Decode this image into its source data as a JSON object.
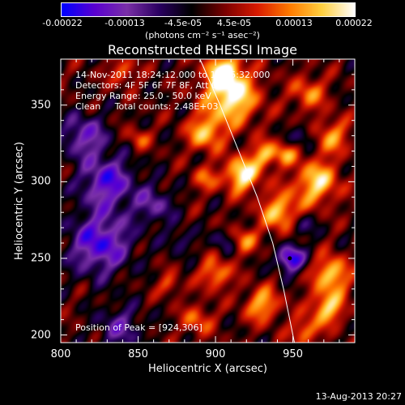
{
  "colorbar": {
    "tick_labels": [
      "-0.00022",
      "-0.00013",
      "-4.5e-05",
      "4.5e-05",
      "0.00013",
      "0.00022"
    ],
    "units": "(photons cm⁻² s⁻¹ asec⁻²)",
    "vmin": -0.00022,
    "vmax": 0.00022
  },
  "info": {
    "time_range": "14-Nov-2011 18:24:12.000 to 18:25:32.000",
    "detectors": "Detectors: 4F 5F 6F 7F 8F, Att 0",
    "energy": "Energy Range: 25.0 - 50.0 keV",
    "method": "Clean     Total counts: 2.48E+03",
    "peak": "Position of Peak = [924,306]"
  },
  "timestamp": "13-Aug-2013 20:27",
  "chart_data": {
    "type": "heatmap",
    "title": "Reconstructed RHESSI Image",
    "xlabel": "Heliocentric X (arcsec)",
    "ylabel": "Heliocentric Y (arcsec)",
    "xlim": [
      800,
      990
    ],
    "ylim": [
      195,
      380
    ],
    "x_ticks": [
      800,
      850,
      900,
      950
    ],
    "y_ticks": [
      200,
      250,
      300,
      350
    ],
    "colormap": [
      "#0000ff",
      "#5a00d0",
      "#7a30a8",
      "#2a0060",
      "#000000",
      "#7a0000",
      "#d81a00",
      "#ff7a00",
      "#ffd040",
      "#ffffff"
    ],
    "peak_position": [
      924,
      306
    ],
    "limb_line": [
      [
        890,
        380
      ],
      [
        903,
        350
      ],
      [
        915,
        320
      ],
      [
        927,
        290
      ],
      [
        937,
        260
      ],
      [
        944,
        230
      ],
      [
        951,
        195
      ]
    ],
    "blobs": [
      {
        "x": 910,
        "y": 355,
        "sigma": 12,
        "amp": 1.0
      },
      {
        "x": 905,
        "y": 372,
        "sigma": 8,
        "amp": 0.9
      },
      {
        "x": 917,
        "y": 305,
        "sigma": 8,
        "amp": 1.0
      },
      {
        "x": 893,
        "y": 332,
        "sigma": 8,
        "amp": 0.75
      },
      {
        "x": 932,
        "y": 318,
        "sigma": 6,
        "amp": 0.7
      },
      {
        "x": 942,
        "y": 280,
        "sigma": 9,
        "amp": 0.8
      },
      {
        "x": 965,
        "y": 300,
        "sigma": 10,
        "amp": 0.85
      },
      {
        "x": 975,
        "y": 330,
        "sigma": 8,
        "amp": 0.6
      },
      {
        "x": 960,
        "y": 358,
        "sigma": 8,
        "amp": 0.55
      },
      {
        "x": 840,
        "y": 372,
        "sigma": 6,
        "amp": 0.5
      },
      {
        "x": 850,
        "y": 328,
        "sigma": 5,
        "amp": 0.45
      },
      {
        "x": 893,
        "y": 302,
        "sigma": 6,
        "amp": 0.45
      },
      {
        "x": 900,
        "y": 240,
        "sigma": 7,
        "amp": 0.65
      },
      {
        "x": 888,
        "y": 210,
        "sigma": 7,
        "amp": 0.5
      },
      {
        "x": 930,
        "y": 220,
        "sigma": 8,
        "amp": 0.7
      },
      {
        "x": 918,
        "y": 262,
        "sigma": 6,
        "amp": 0.55
      },
      {
        "x": 975,
        "y": 240,
        "sigma": 8,
        "amp": 0.85
      },
      {
        "x": 972,
        "y": 218,
        "sigma": 8,
        "amp": 0.8
      },
      {
        "x": 957,
        "y": 202,
        "sigma": 6,
        "amp": 0.6
      },
      {
        "x": 945,
        "y": 318,
        "sigma": 5,
        "amp": 0.55
      },
      {
        "x": 870,
        "y": 233,
        "sigma": 5,
        "amp": 0.45
      },
      {
        "x": 825,
        "y": 260,
        "sigma": 14,
        "amp": -0.85
      },
      {
        "x": 830,
        "y": 300,
        "sigma": 12,
        "amp": -0.8
      },
      {
        "x": 815,
        "y": 330,
        "sigma": 10,
        "amp": -0.65
      },
      {
        "x": 860,
        "y": 285,
        "sigma": 9,
        "amp": -0.5
      },
      {
        "x": 838,
        "y": 205,
        "sigma": 10,
        "amp": -0.5
      },
      {
        "x": 948,
        "y": 250,
        "sigma": 6,
        "amp": -1.0
      },
      {
        "x": 957,
        "y": 330,
        "sigma": 5,
        "amp": -0.4
      },
      {
        "x": 955,
        "y": 272,
        "sigma": 6,
        "amp": -0.45
      },
      {
        "x": 877,
        "y": 262,
        "sigma": 6,
        "amp": -0.35
      },
      {
        "x": 905,
        "y": 262,
        "sigma": 5,
        "amp": -0.4
      }
    ]
  }
}
